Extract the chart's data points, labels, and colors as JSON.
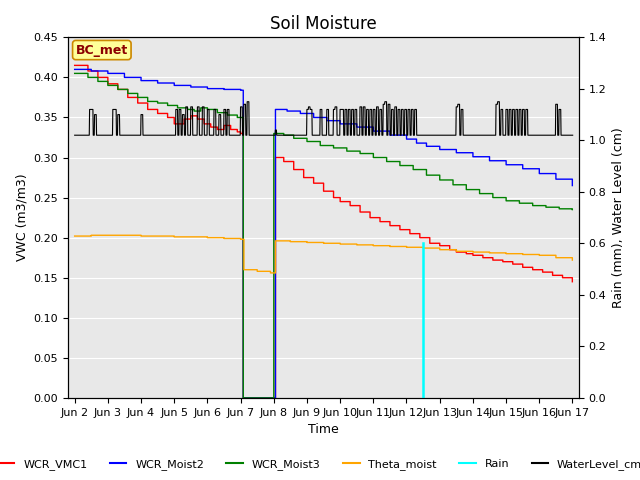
{
  "title": "Soil Moisture",
  "ylabel_left": "VWC (m3/m3)",
  "ylabel_right": "Rain (mm), Water Level (cm)",
  "xlabel": "Time",
  "ylim_left": [
    0.0,
    0.45
  ],
  "ylim_right": [
    0.0,
    1.4
  ],
  "plot_bg_color": "#e8e8e8",
  "bc_met_label": "BC_met",
  "xtick_labels": [
    "Jun 2",
    "Jun 3",
    "Jun 4",
    "Jun 5",
    "Jun 6",
    "Jun 7",
    "Jun 8",
    "Jun 9",
    "Jun 10",
    "Jun 11",
    "Jun 12",
    "Jun 13",
    "Jun 14",
    "Jun 15",
    "Jun 16",
    "Jun 17"
  ],
  "title_fontsize": 12,
  "axes_fontsize": 9,
  "tick_fontsize": 8,
  "legend_fontsize": 8
}
